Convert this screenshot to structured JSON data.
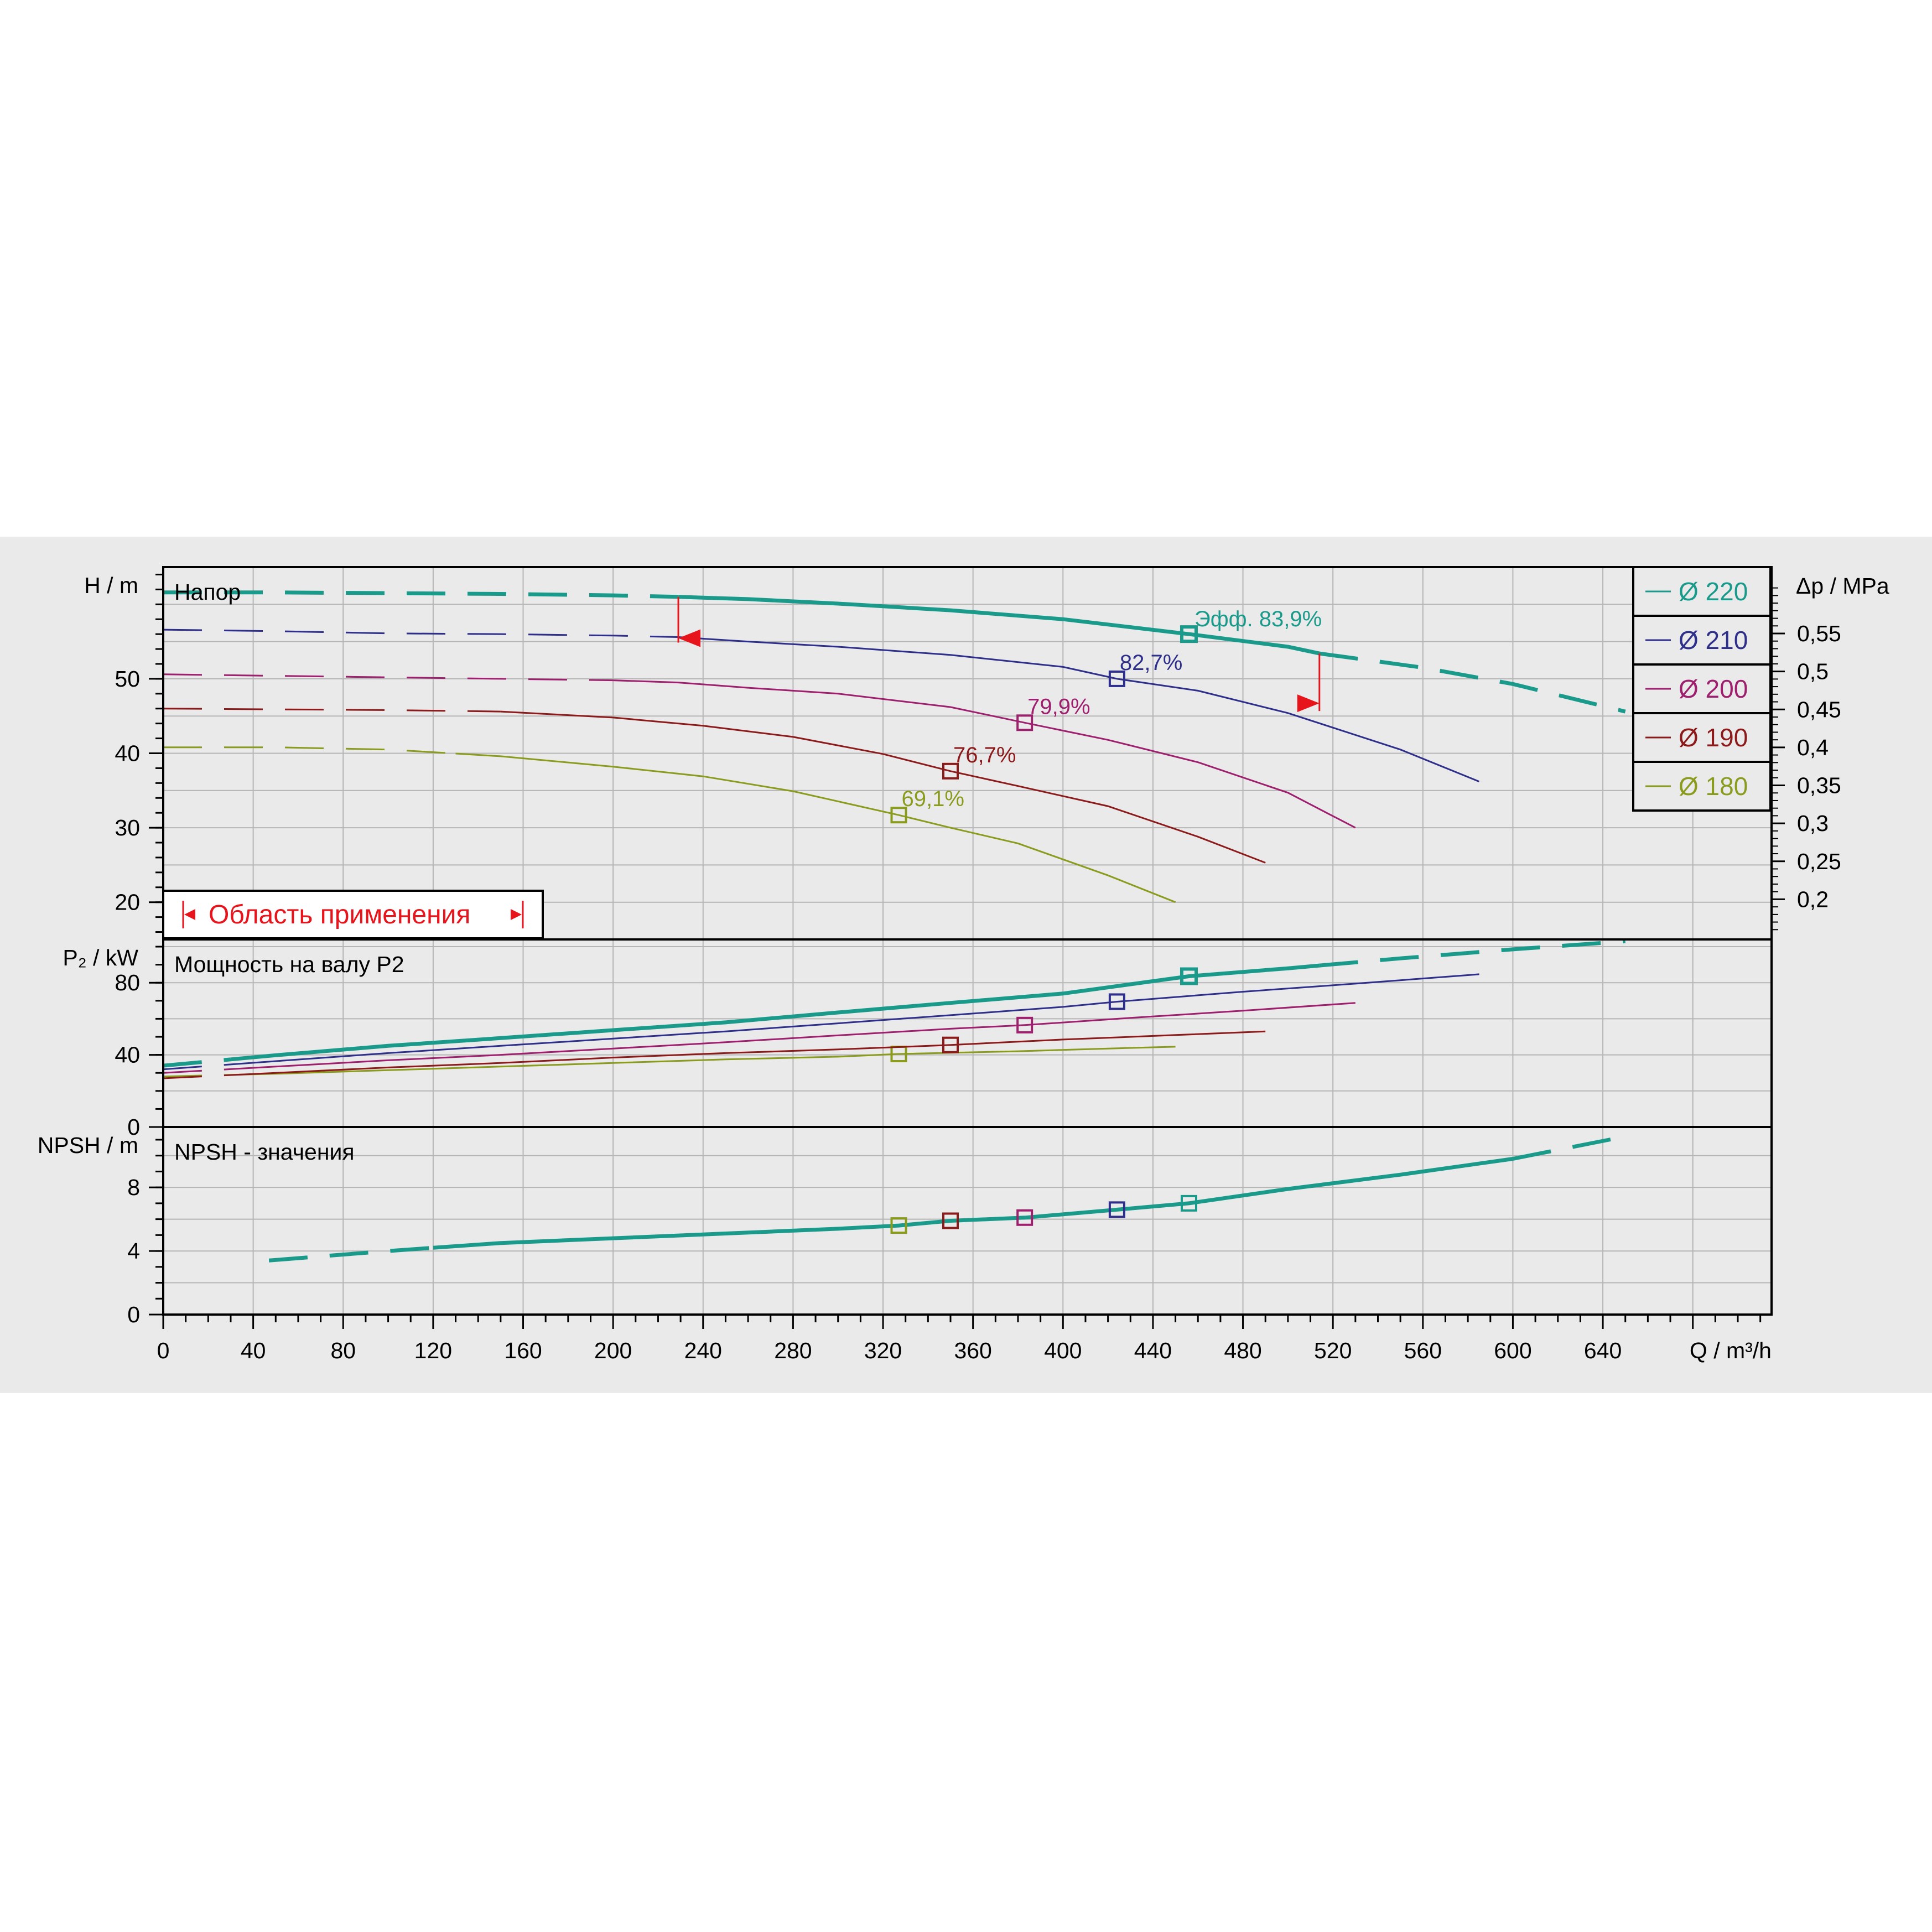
{
  "chart_data": [
    {
      "type": "line",
      "panel": "head",
      "title": "Напор",
      "ylabel": "H / m",
      "ylabel_right": "Δp / MPa",
      "xlim": [
        0,
        715
      ],
      "ylim": [
        15,
        65
      ],
      "yticks": [
        20,
        30,
        40,
        50
      ],
      "yticks_right": [
        "0,55",
        "0,5",
        "0,45",
        "0,4",
        "0,35",
        "0,3",
        "0,25",
        "0,2"
      ],
      "yticks_right_values": [
        0.55,
        0.5,
        0.45,
        0.4,
        0.35,
        0.3,
        0.25,
        0.2
      ],
      "grid": true,
      "legend_position": "top-right",
      "series": [
        {
          "name": "Ø 220",
          "color": "#1a9a8a",
          "width": 7,
          "x": [
            0,
            50,
            100,
            150,
            200,
            229,
            260,
            300,
            350,
            400,
            456,
            500,
            514,
            560,
            600,
            650
          ],
          "y": [
            61.6,
            61.6,
            61.5,
            61.4,
            61.2,
            61.0,
            60.7,
            60.1,
            59.2,
            58.0,
            56.0,
            54.3,
            53.4,
            51.5,
            49.3,
            45.6
          ],
          "solid_from": 229,
          "solid_to": 514,
          "bep": {
            "x": 456,
            "y": 56.0,
            "label": "Эфф.   83,9%"
          }
        },
        {
          "name": "Ø 210",
          "color": "#2e2f8a",
          "width": 3,
          "x": [
            0,
            50,
            100,
            150,
            200,
            229,
            260,
            300,
            350,
            400,
            424,
            460,
            500,
            550,
            585
          ],
          "y": [
            56.6,
            56.4,
            56.1,
            56.0,
            55.8,
            55.6,
            55.0,
            54.3,
            53.2,
            51.6,
            50.0,
            48.4,
            45.4,
            40.5,
            36.2
          ],
          "solid_from": 229,
          "solid_to": 585,
          "bep": {
            "x": 424,
            "y": 50.0,
            "label": "82,7%"
          }
        },
        {
          "name": "Ø 200",
          "color": "#9e1f6e",
          "width": 3,
          "x": [
            0,
            50,
            100,
            150,
            200,
            229,
            260,
            300,
            350,
            383,
            420,
            460,
            500,
            530
          ],
          "y": [
            50.6,
            50.4,
            50.2,
            50.0,
            49.8,
            49.5,
            48.8,
            48.0,
            46.2,
            44.1,
            41.8,
            38.8,
            34.7,
            30.0
          ],
          "solid_from": 200,
          "solid_to": 530,
          "bep": {
            "x": 383,
            "y": 44.1,
            "label": "79,9%"
          }
        },
        {
          "name": "Ø 190",
          "color": "#8c1a1a",
          "width": 3,
          "x": [
            0,
            50,
            100,
            150,
            200,
            240,
            280,
            320,
            350,
            380,
            420,
            460,
            490
          ],
          "y": [
            46.0,
            45.9,
            45.8,
            45.6,
            44.8,
            43.7,
            42.2,
            39.9,
            37.6,
            35.6,
            32.9,
            28.8,
            25.3
          ],
          "solid_from": 150,
          "solid_to": 490,
          "bep": {
            "x": 350,
            "y": 37.6,
            "label": "76,7%"
          }
        },
        {
          "name": "Ø 180",
          "color": "#8a9b1e",
          "width": 3,
          "x": [
            0,
            50,
            100,
            150,
            200,
            240,
            280,
            327,
            350,
            380,
            420,
            450
          ],
          "y": [
            40.8,
            40.8,
            40.5,
            39.6,
            38.2,
            36.9,
            34.9,
            31.7,
            30.0,
            27.9,
            23.6,
            20.0
          ],
          "solid_from": 130,
          "solid_to": 450,
          "bep": {
            "x": 327,
            "y": 31.7,
            "label": "69,1%"
          }
        }
      ],
      "annotations": {
        "operating_range_label": "Область применения",
        "range_min_q": 229,
        "range_max_q": 514
      }
    },
    {
      "type": "line",
      "panel": "power",
      "title": "Мощность на валу P2",
      "ylabel": "P₂ / kW",
      "xlim": [
        0,
        715
      ],
      "ylim": [
        0,
        104
      ],
      "yticks": [
        0,
        40,
        80
      ],
      "grid": true,
      "series": [
        {
          "name": "Ø 220",
          "color": "#1a9a8a",
          "width": 7,
          "x": [
            0,
            50,
            100,
            150,
            200,
            250,
            300,
            350,
            400,
            456,
            500,
            550,
            600,
            650
          ],
          "y": [
            34.0,
            39.8,
            45.0,
            49.3,
            53.7,
            58.0,
            63.5,
            68.8,
            74.0,
            83.6,
            88.0,
            93.5,
            98.5,
            103.0
          ],
          "solid_from": 30,
          "solid_to": 514,
          "bep": {
            "x": 456,
            "y": 83.6
          }
        },
        {
          "name": "Ø 210",
          "color": "#2e2f8a",
          "width": 3,
          "x": [
            0,
            50,
            100,
            150,
            200,
            250,
            300,
            350,
            400,
            424,
            480,
            530,
            585
          ],
          "y": [
            32.0,
            36.5,
            41.0,
            45.0,
            49.0,
            53.0,
            57.5,
            62.0,
            66.6,
            69.5,
            75.0,
            79.5,
            84.7
          ],
          "solid_from": 30,
          "solid_to": 585,
          "bep": {
            "x": 424,
            "y": 69.5
          }
        },
        {
          "name": "Ø 200",
          "color": "#9e1f6e",
          "width": 3,
          "x": [
            0,
            50,
            100,
            150,
            200,
            250,
            300,
            350,
            383,
            430,
            480,
            530
          ],
          "y": [
            30.0,
            33.5,
            37.0,
            40.0,
            43.5,
            47.0,
            50.8,
            54.5,
            56.5,
            60.5,
            64.5,
            68.8
          ],
          "solid_from": 30,
          "solid_to": 530,
          "bep": {
            "x": 383,
            "y": 56.5
          }
        },
        {
          "name": "Ø 190",
          "color": "#8c1a1a",
          "width": 3,
          "x": [
            0,
            50,
            100,
            150,
            200,
            250,
            300,
            350,
            400,
            450,
            490
          ],
          "y": [
            27.0,
            30.0,
            33.0,
            35.5,
            38.5,
            41.0,
            43.0,
            45.5,
            48.5,
            51.0,
            53.0
          ],
          "solid_from": 30,
          "solid_to": 490,
          "bep": {
            "x": 350,
            "y": 45.5
          }
        },
        {
          "name": "Ø 180",
          "color": "#8a9b1e",
          "width": 3,
          "x": [
            0,
            50,
            100,
            150,
            200,
            250,
            300,
            327,
            380,
            420,
            450
          ],
          "y": [
            28.0,
            29.5,
            31.5,
            33.5,
            35.5,
            37.5,
            39.0,
            40.5,
            42.0,
            43.5,
            44.5
          ],
          "solid_from": 30,
          "solid_to": 450,
          "bep": {
            "x": 327,
            "y": 40.5
          }
        }
      ]
    },
    {
      "type": "line",
      "panel": "npsh",
      "title": "NPSH - значения",
      "ylabel": "NPSH / m",
      "xlabel": "Q / m³/h",
      "xlim": [
        0,
        715
      ],
      "ylim": [
        0,
        11.8
      ],
      "yticks": [
        0,
        4,
        8
      ],
      "xticks": [
        0,
        40,
        80,
        120,
        160,
        200,
        240,
        280,
        320,
        360,
        400,
        440,
        480,
        520,
        560,
        600,
        640
      ],
      "grid": true,
      "series": [
        {
          "name": "Ø 220",
          "color": "#1a9a8a",
          "width": 7,
          "x": [
            47,
            100,
            150,
            200,
            250,
            300,
            327,
            350,
            383,
            424,
            456,
            500,
            550,
            600,
            650
          ],
          "y": [
            3.4,
            4.0,
            4.5,
            4.8,
            5.1,
            5.4,
            5.6,
            5.9,
            6.1,
            6.6,
            7.0,
            7.9,
            8.8,
            9.8,
            11.2
          ],
          "solid_from": 120,
          "solid_to": 600,
          "markers": [
            {
              "x": 327,
              "y": 5.6,
              "color": "#8a9b1e"
            },
            {
              "x": 350,
              "y": 5.9,
              "color": "#8c1a1a"
            },
            {
              "x": 383,
              "y": 6.1,
              "color": "#9e1f6e"
            },
            {
              "x": 424,
              "y": 6.6,
              "color": "#2e2f8a"
            },
            {
              "x": 456,
              "y": 7.0,
              "color": "#1a9a8a"
            }
          ]
        }
      ]
    }
  ]
}
